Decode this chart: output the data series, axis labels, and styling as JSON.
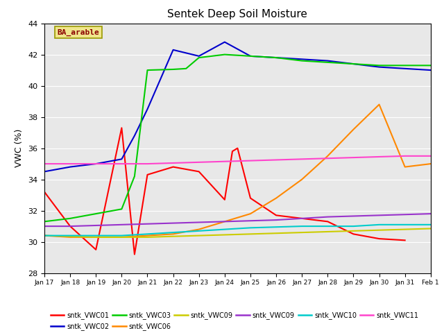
{
  "title": "Sentek Deep Soil Moisture",
  "ylabel": "VWC (%)",
  "ylim": [
    28,
    44
  ],
  "yticks": [
    28,
    30,
    32,
    34,
    36,
    38,
    40,
    42,
    44
  ],
  "background_color": "#e8e8e8",
  "annotation_text": "BA_arable",
  "annotation_color": "#8b0000",
  "annotation_bg": "#f0e68c",
  "series": [
    {
      "label": "sntk_VWC01",
      "color": "#ff0000",
      "data_x": [
        0,
        1,
        2,
        3,
        3.5,
        4,
        5,
        6,
        7,
        7.3,
        7.5,
        8,
        9,
        10,
        11,
        12,
        13,
        14
      ],
      "data_y": [
        33.2,
        31.0,
        29.5,
        37.3,
        29.2,
        34.3,
        34.8,
        34.5,
        32.7,
        35.8,
        36.0,
        32.8,
        31.7,
        31.5,
        31.3,
        30.5,
        30.2,
        30.1
      ]
    },
    {
      "label": "sntk_VWC02",
      "color": "#0000cc",
      "data_x": [
        0,
        1,
        2,
        3,
        3.5,
        4,
        5,
        6,
        7,
        8,
        9,
        10,
        11,
        12,
        13,
        14,
        15
      ],
      "data_y": [
        34.5,
        34.8,
        35.0,
        35.3,
        36.8,
        38.5,
        42.3,
        41.9,
        42.8,
        41.9,
        41.8,
        41.7,
        41.6,
        41.4,
        41.2,
        41.1,
        41.0
      ]
    },
    {
      "label": "sntk_VWC03",
      "color": "#00cc00",
      "data_x": [
        0,
        1,
        2,
        3,
        3.5,
        4,
        5,
        5.5,
        6,
        7,
        8,
        9,
        10,
        11,
        12,
        13,
        14,
        15
      ],
      "data_y": [
        31.3,
        31.5,
        31.8,
        32.1,
        34.2,
        41.0,
        41.05,
        41.1,
        41.8,
        42.0,
        41.9,
        41.8,
        41.6,
        41.5,
        41.4,
        41.3,
        41.3,
        41.3
      ]
    },
    {
      "label": "sntk_VWC06",
      "color": "#ff8800",
      "data_x": [
        0,
        1,
        2,
        3,
        4,
        5,
        6,
        7,
        8,
        9,
        10,
        11,
        12,
        13,
        14,
        15
      ],
      "data_y": [
        30.4,
        30.3,
        30.3,
        30.3,
        30.4,
        30.5,
        30.8,
        31.3,
        31.8,
        32.8,
        34.0,
        35.5,
        37.2,
        38.8,
        34.8,
        35.0
      ]
    },
    {
      "label": "sntk_VWC09",
      "color": "#cccc00",
      "data_x": [
        0,
        1,
        2,
        3,
        4,
        5,
        6,
        7,
        8,
        9,
        10,
        11,
        12,
        13,
        14,
        15
      ],
      "data_y": [
        30.4,
        30.35,
        30.3,
        30.3,
        30.3,
        30.35,
        30.4,
        30.45,
        30.5,
        30.55,
        30.6,
        30.65,
        30.7,
        30.75,
        30.8,
        30.85
      ]
    },
    {
      "label": "sntk_VWC09",
      "color": "#9933cc",
      "data_x": [
        0,
        1,
        2,
        3,
        4,
        5,
        6,
        7,
        8,
        9,
        10,
        11,
        12,
        13,
        14,
        15
      ],
      "data_y": [
        31.0,
        31.0,
        31.05,
        31.1,
        31.15,
        31.2,
        31.25,
        31.3,
        31.35,
        31.4,
        31.5,
        31.6,
        31.65,
        31.7,
        31.75,
        31.8
      ]
    },
    {
      "label": "sntk_VWC10",
      "color": "#00cccc",
      "data_x": [
        0,
        1,
        2,
        3,
        4,
        5,
        6,
        7,
        8,
        9,
        10,
        11,
        12,
        13,
        14,
        15
      ],
      "data_y": [
        30.4,
        30.4,
        30.4,
        30.4,
        30.5,
        30.6,
        30.7,
        30.8,
        30.9,
        30.95,
        31.0,
        31.0,
        31.0,
        31.1,
        31.1,
        31.1
      ]
    },
    {
      "label": "sntk_VWC11",
      "color": "#ff44cc",
      "data_x": [
        0,
        1,
        2,
        3,
        4,
        5,
        6,
        7,
        8,
        9,
        10,
        11,
        12,
        13,
        14,
        15
      ],
      "data_y": [
        35.0,
        35.0,
        35.0,
        35.0,
        35.0,
        35.05,
        35.1,
        35.15,
        35.2,
        35.25,
        35.3,
        35.35,
        35.4,
        35.45,
        35.5,
        35.5
      ]
    }
  ],
  "legend_entries": [
    {
      "label": "sntk_VWC01",
      "color": "#ff0000"
    },
    {
      "label": "sntk_VWC02",
      "color": "#0000cc"
    },
    {
      "label": "sntk_VWC03",
      "color": "#00cc00"
    },
    {
      "label": "sntk_VWC06",
      "color": "#ff8800"
    },
    {
      "label": "sntk_VWC09",
      "color": "#cccc00"
    },
    {
      "label": "sntk_VWC09",
      "color": "#9933cc"
    },
    {
      "label": "sntk_VWC10",
      "color": "#00cccc"
    },
    {
      "label": "sntk_VWC11",
      "color": "#ff44cc"
    }
  ],
  "xtick_labels": [
    "Jan 17",
    "Jan 18",
    "Jan 19",
    "Jan 20",
    "Jan 21",
    "Jan 22",
    "Jan 23",
    "Jan 24",
    "Jan 25",
    "Jan 26",
    "Jan 27",
    "Jan 28",
    "Jan 29",
    "Jan 30",
    "Jan 31",
    "Feb 1"
  ]
}
